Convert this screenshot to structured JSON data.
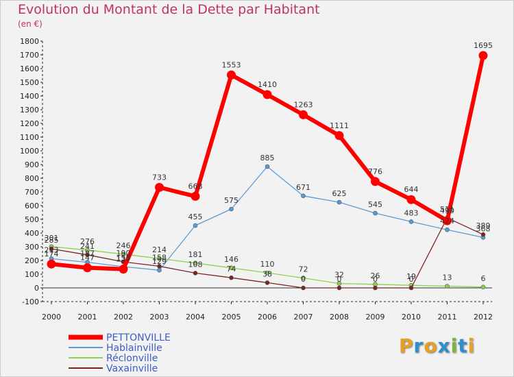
{
  "header": {
    "title": "Evolution du Montant de la Dette par Habitant",
    "unit": "(en €)"
  },
  "logo": {
    "letters": [
      "P",
      "r",
      "o",
      "x",
      "i",
      "t",
      "i"
    ],
    "colors": [
      "#e8a020",
      "#2e8fd0",
      "#e8a020",
      "#2e8fd0",
      "#7ab63a",
      "#2e8fd0",
      "#e8a020"
    ]
  },
  "chart_data": {
    "type": "line",
    "title": "Evolution du Montant de la Dette par Habitant",
    "ylabel": "(en €)",
    "xlabel": "",
    "categories": [
      "2000",
      "2001",
      "2002",
      "2003",
      "2004",
      "2005",
      "2006",
      "2007",
      "2008",
      "2009",
      "2010",
      "2011",
      "2012"
    ],
    "ylim": [
      -100,
      1800
    ],
    "yticks": [
      -100,
      0,
      100,
      200,
      300,
      400,
      500,
      600,
      700,
      800,
      900,
      1000,
      1100,
      1200,
      1300,
      1400,
      1500,
      1600,
      1700,
      1800
    ],
    "grid": false,
    "legend_position": "bottom-left",
    "series": [
      {
        "name": "PETTONVILLE",
        "color": "#ff0000",
        "emphasis": true,
        "values": [
          174,
          147,
          137,
          733,
          668,
          1553,
          1410,
          1263,
          1111,
          776,
          644,
          490,
          1695
        ]
      },
      {
        "name": "Hablainville",
        "color": "#5b9bd5",
        "emphasis": false,
        "values": [
          213,
          187,
          155,
          129,
          455,
          575,
          885,
          671,
          625,
          545,
          483,
          424,
          368
        ]
      },
      {
        "name": "Réclonville",
        "color": "#8fd14f",
        "emphasis": false,
        "values": [
          301,
          276,
          246,
          214,
          181,
          146,
          110,
          72,
          32,
          26,
          19,
          13,
          6
        ]
      },
      {
        "name": "Vaxainville",
        "color": "#7b2424",
        "emphasis": false,
        "values": [
          285,
          241,
          190,
          158,
          108,
          74,
          38,
          0,
          0,
          0,
          0,
          511,
          389
        ]
      }
    ]
  }
}
